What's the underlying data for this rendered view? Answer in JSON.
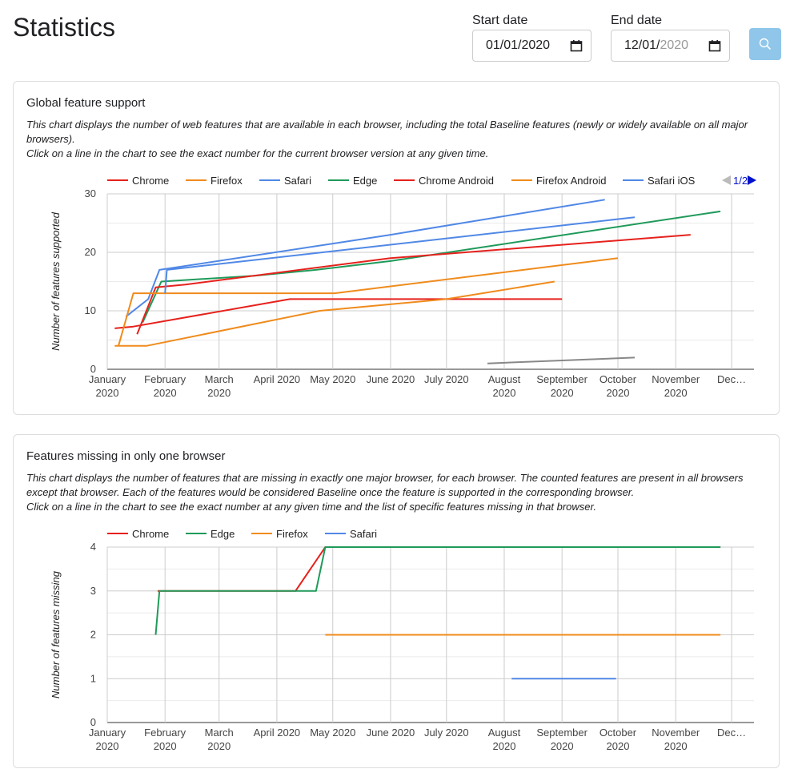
{
  "header": {
    "title": "Statistics",
    "start_label": "Start date",
    "start_value": "01/01/2020",
    "end_label": "End date",
    "end_value_main": "12/01/",
    "end_value_dim": "2020"
  },
  "chart_data": [
    {
      "type": "line",
      "title": "Global feature support",
      "description": [
        "This chart displays the number of web features that are available in each browser, including the total Baseline features (newly or widely available on all major browsers).",
        "Click on a line in the chart to see the exact number for the current browser version at any given time."
      ],
      "ylabel": "Number of features supported",
      "ylim": [
        0,
        30
      ],
      "yticks": [
        0,
        10,
        20,
        30
      ],
      "grid": true,
      "legend_position": "top",
      "legend_page": "1/2",
      "x_tick_labels": [
        [
          "January",
          "2020"
        ],
        [
          "February",
          "2020"
        ],
        [
          "March",
          "2020"
        ],
        [
          "April 2020"
        ],
        [
          "May 2020"
        ],
        [
          "June 2020"
        ],
        [
          "July 2020"
        ],
        [
          "August",
          "2020"
        ],
        [
          "September",
          "2020"
        ],
        [
          "October",
          "2020"
        ],
        [
          "November",
          "2020"
        ],
        [
          "Dec…"
        ]
      ],
      "series": [
        {
          "name": "Chrome",
          "color": "#e6211c",
          "points": [
            [
              "2020-01-05",
              7
            ],
            [
              "2020-01-15",
              7.3
            ],
            [
              "2020-04-08",
              12
            ],
            [
              "2020-09-01",
              12
            ]
          ]
        },
        {
          "name": "Firefox",
          "color": "#f08b1c",
          "points": [
            [
              "2020-01-05",
              4
            ],
            [
              "2020-01-22",
              4
            ],
            [
              "2020-04-24",
              10
            ],
            [
              "2020-07-01",
              12
            ],
            [
              "2020-08-28",
              15
            ]
          ]
        },
        {
          "name": "Safari",
          "color": "#5088e6",
          "points": [
            [
              "2020-01-11",
              9
            ],
            [
              "2020-01-23",
              12
            ],
            [
              "2020-01-29",
              17
            ],
            [
              "2020-05-01",
              21.5
            ],
            [
              "2020-06-01",
              23
            ],
            [
              "2020-09-24",
              29
            ]
          ]
        },
        {
          "name": "Edge",
          "color": "#1f9a5a",
          "points": [
            [
              "2020-01-20",
              8
            ],
            [
              "2020-01-30",
              15
            ],
            [
              "2020-03-20",
              16
            ],
            [
              "2020-04-22",
              17
            ],
            [
              "2020-06-01",
              18.5
            ],
            [
              "2020-11-25",
              27
            ]
          ]
        },
        {
          "name": "Chrome Android",
          "color": "#e6211c",
          "points": [
            [
              "2020-01-17",
              6
            ],
            [
              "2020-01-27",
              14
            ],
            [
              "2020-02-12",
              14.5
            ],
            [
              "2020-06-01",
              19
            ],
            [
              "2020-11-09",
              23
            ]
          ]
        },
        {
          "name": "Firefox Android",
          "color": "#f08b1c",
          "points": [
            [
              "2020-01-07",
              4
            ],
            [
              "2020-01-15",
              13
            ],
            [
              "2020-01-31",
              13
            ],
            [
              "2020-05-02",
              13
            ],
            [
              "2020-10-01",
              19
            ]
          ]
        },
        {
          "name": "Safari iOS",
          "color": "#5088e6",
          "points": [
            [
              "2020-02-01",
              13
            ],
            [
              "2020-02-02",
              17
            ],
            [
              "2020-10-10",
              26
            ]
          ]
        },
        {
          "name": "",
          "color": "#888888",
          "points": [
            [
              "2020-07-23",
              1
            ],
            [
              "2020-10-10",
              2
            ]
          ]
        }
      ]
    },
    {
      "type": "line",
      "title": "Features missing in only one browser",
      "description": [
        "This chart displays the number of features that are missing in exactly one major browser, for each browser. The counted features are present in all browsers except that browser. Each of the features would be considered Baseline once the feature is supported in the corresponding browser.",
        "Click on a line in the chart to see the exact number at any given time and the list of specific features missing in that browser."
      ],
      "ylabel": "Number of features missing",
      "ylim": [
        0,
        4
      ],
      "yticks": [
        0,
        1,
        2,
        3,
        4
      ],
      "grid": true,
      "legend_position": "top",
      "x_tick_labels": [
        [
          "January",
          "2020"
        ],
        [
          "February",
          "2020"
        ],
        [
          "March",
          "2020"
        ],
        [
          "April 2020"
        ],
        [
          "May 2020"
        ],
        [
          "June 2020"
        ],
        [
          "July 2020"
        ],
        [
          "August",
          "2020"
        ],
        [
          "September",
          "2020"
        ],
        [
          "October",
          "2020"
        ],
        [
          "November",
          "2020"
        ],
        [
          "Dec…"
        ]
      ],
      "series": [
        {
          "name": "Chrome",
          "color": "#e6211c",
          "points": [
            [
              "2020-01-28",
              3
            ],
            [
              "2020-04-11",
              3
            ],
            [
              "2020-04-27",
              4
            ],
            [
              "2020-11-25",
              4
            ]
          ]
        },
        {
          "name": "Edge",
          "color": "#1f9a5a",
          "points": [
            [
              "2020-01-27",
              2
            ],
            [
              "2020-01-29",
              3
            ],
            [
              "2020-04-22",
              3
            ],
            [
              "2020-04-27",
              4
            ],
            [
              "2020-11-25",
              4
            ]
          ]
        },
        {
          "name": "Firefox",
          "color": "#f08b1c",
          "points": [
            [
              "2020-04-27",
              2
            ],
            [
              "2020-11-25",
              2
            ]
          ]
        },
        {
          "name": "Safari",
          "color": "#5088e6",
          "points": [
            [
              "2020-08-05",
              1
            ],
            [
              "2020-09-30",
              1
            ]
          ]
        }
      ]
    }
  ]
}
